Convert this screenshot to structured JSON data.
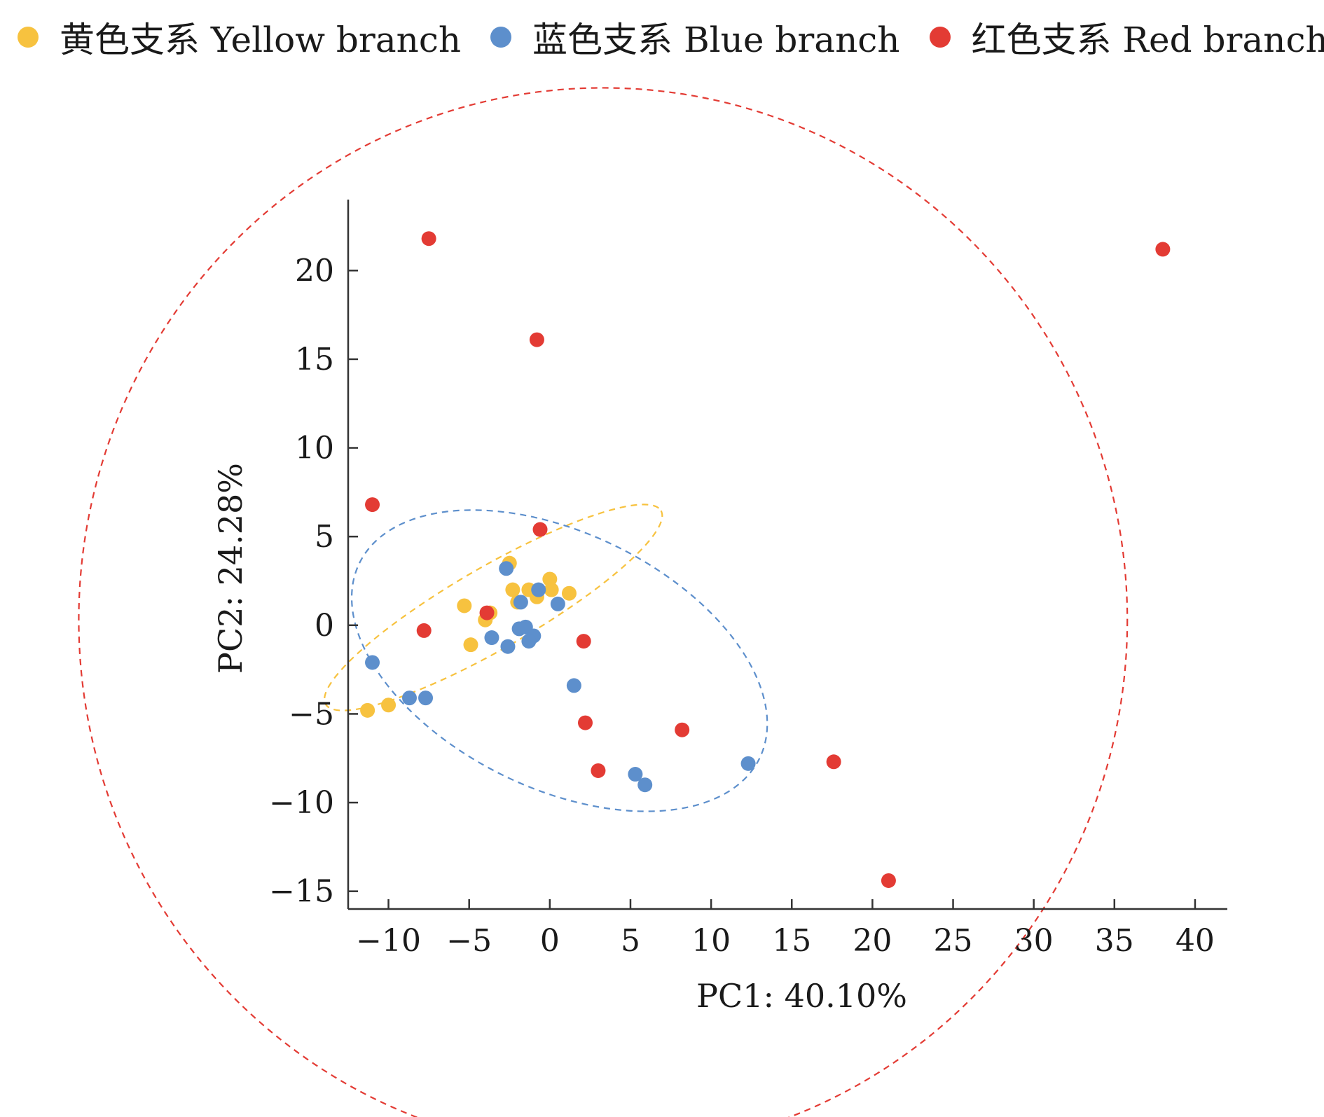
{
  "chart_data": {
    "type": "scatter",
    "xlabel": "PC1: 40.10%",
    "ylabel": "PC2: 24.28%",
    "xlim": [
      -12.5,
      42
    ],
    "ylim": [
      -16,
      24
    ],
    "x_ticks": [
      -10,
      -5,
      0,
      5,
      10,
      15,
      20,
      25,
      30,
      35,
      40
    ],
    "x_tick_labels": [
      "−10",
      "−5",
      "0",
      "5",
      "10",
      "15",
      "20",
      "25",
      "30",
      "35",
      "40"
    ],
    "y_ticks": [
      20,
      15,
      10,
      5,
      0,
      -5,
      -10,
      -15
    ],
    "y_tick_labels": [
      "20",
      "15",
      "10",
      "5",
      "0",
      "−5",
      "−10",
      "−15"
    ],
    "grid": false,
    "legend_position": "top",
    "series": [
      {
        "name": "黄色支系 Yellow branch",
        "color": "#f7c23f",
        "points": [
          [
            -2.5,
            3.5
          ],
          [
            -2.3,
            2.0
          ],
          [
            -2.0,
            1.3
          ],
          [
            -1.3,
            2.0
          ],
          [
            -0.8,
            1.6
          ],
          [
            0.0,
            2.6
          ],
          [
            0.1,
            2.0
          ],
          [
            1.2,
            1.8
          ],
          [
            -5.3,
            1.1
          ],
          [
            -4.0,
            0.3
          ],
          [
            -3.7,
            0.7
          ],
          [
            -4.9,
            -1.1
          ],
          [
            -11.3,
            -4.8
          ],
          [
            -10.0,
            -4.5
          ]
        ]
      },
      {
        "name": "蓝色支系 Blue branch",
        "color": "#5d8fcc",
        "points": [
          [
            -2.7,
            3.2
          ],
          [
            -0.7,
            2.0
          ],
          [
            -1.8,
            1.3
          ],
          [
            0.5,
            1.2
          ],
          [
            -1.9,
            -0.2
          ],
          [
            -1.5,
            -0.1
          ],
          [
            -1.0,
            -0.6
          ],
          [
            -1.3,
            -0.9
          ],
          [
            -3.6,
            -0.7
          ],
          [
            -2.6,
            -1.2
          ],
          [
            -11.0,
            -2.1
          ],
          [
            -8.7,
            -4.1
          ],
          [
            -7.7,
            -4.1
          ],
          [
            1.5,
            -3.4
          ],
          [
            5.3,
            -8.4
          ],
          [
            5.9,
            -9.0
          ],
          [
            12.3,
            -7.8
          ]
        ]
      },
      {
        "name": "红色支系 Red branch",
        "color": "#e33b34",
        "points": [
          [
            -7.5,
            21.8
          ],
          [
            38.0,
            21.2
          ],
          [
            -0.8,
            16.1
          ],
          [
            -11.0,
            6.8
          ],
          [
            -0.6,
            5.4
          ],
          [
            -3.9,
            0.7
          ],
          [
            -7.8,
            -0.3
          ],
          [
            2.1,
            -0.9
          ],
          [
            2.2,
            -5.5
          ],
          [
            8.2,
            -5.9
          ],
          [
            3.0,
            -8.2
          ],
          [
            17.6,
            -7.7
          ],
          [
            21.0,
            -14.4
          ]
        ]
      }
    ],
    "ellipses": [
      {
        "series": "黄色支系 Yellow branch",
        "color": "#f7c23f",
        "cx": -3.5,
        "cy": 1.0,
        "rx": 12.0,
        "ry": 2.3,
        "angle_deg": 30
      },
      {
        "series": "蓝色支系 Blue branch",
        "color": "#5d8fcc",
        "cx": 0.6,
        "cy": -2.0,
        "rx": 13.8,
        "ry": 7.2,
        "angle_deg": -26
      },
      {
        "series": "红色支系 Red branch",
        "color": "#e33b34",
        "cx": 3.3,
        "cy": 0.3,
        "rx": 32.5,
        "ry": 30.0,
        "angle_deg": 0
      }
    ]
  }
}
